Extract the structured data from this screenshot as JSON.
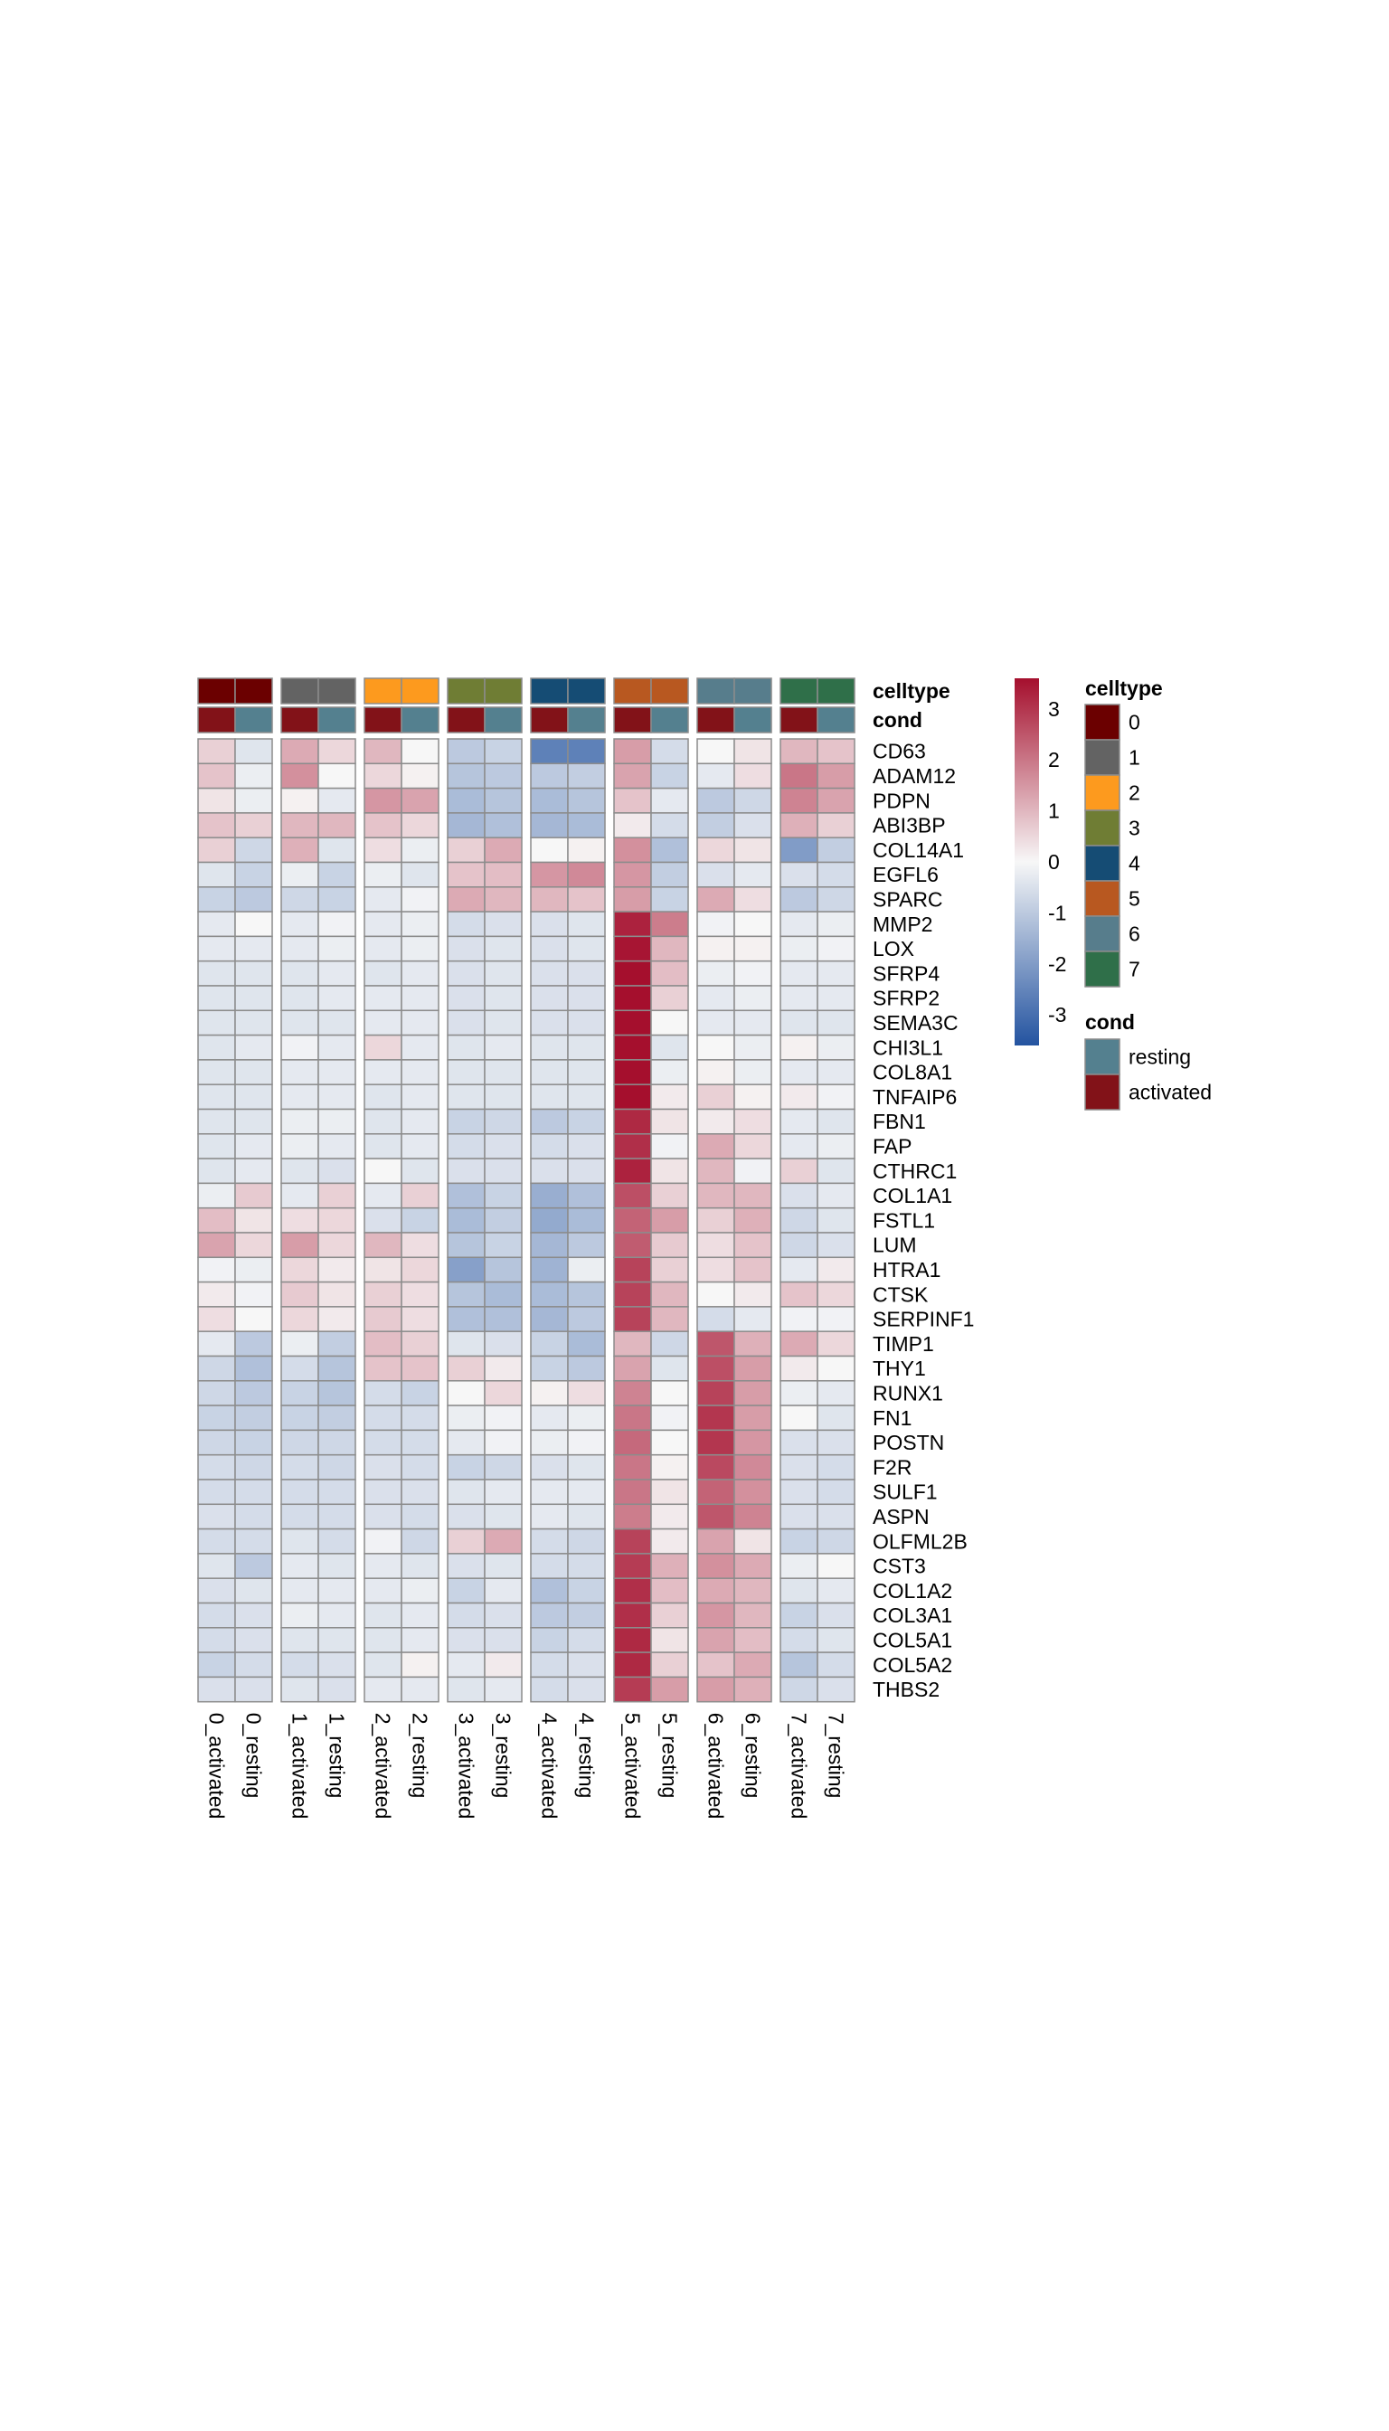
{
  "chart_data": {
    "type": "heatmap",
    "rows": [
      "CD63",
      "ADAM12",
      "PDPN",
      "ABI3BP",
      "COL14A1",
      "EGFL6",
      "SPARC",
      "MMP2",
      "LOX",
      "SFRP4",
      "SFRP2",
      "SEMA3C",
      "CHI3L1",
      "COL8A1",
      "TNFAIP6",
      "FBN1",
      "FAP",
      "CTHRC1",
      "COL1A1",
      "FSTL1",
      "LUM",
      "HTRA1",
      "CTSK",
      "SERPINF1",
      "TIMP1",
      "THY1",
      "RUNX1",
      "FN1",
      "POSTN",
      "F2R",
      "SULF1",
      "ASPN",
      "OLFML2B",
      "CST3",
      "COL1A2",
      "COL3A1",
      "COL5A1",
      "COL5A2",
      "THBS2"
    ],
    "columns": [
      "0_activated",
      "0_resting",
      "1_activated",
      "1_resting",
      "2_activated",
      "2_resting",
      "3_activated",
      "3_resting",
      "4_activated",
      "4_resting",
      "5_activated",
      "5_resting",
      "6_activated",
      "6_resting",
      "7_activated",
      "7_resting"
    ],
    "values": [
      [
        0.6,
        -0.4,
        1.2,
        0.5,
        1.0,
        0.0,
        -1.0,
        -0.8,
        -2.6,
        -2.6,
        1.4,
        -0.6,
        0.0,
        0.3,
        1.0,
        0.8
      ],
      [
        0.8,
        -0.2,
        1.6,
        0.0,
        0.5,
        0.1,
        -1.1,
        -1.0,
        -1.0,
        -0.9,
        1.3,
        -0.8,
        -0.3,
        0.4,
        2.0,
        1.4
      ],
      [
        0.3,
        -0.2,
        0.1,
        -0.3,
        1.5,
        1.3,
        -1.3,
        -1.1,
        -1.3,
        -1.1,
        0.8,
        -0.3,
        -1.0,
        -0.7,
        1.8,
        1.3
      ],
      [
        0.8,
        0.6,
        1.0,
        1.0,
        0.8,
        0.5,
        -1.4,
        -1.2,
        -1.4,
        -1.3,
        0.2,
        -0.6,
        -0.9,
        -0.5,
        1.1,
        0.6
      ],
      [
        0.6,
        -0.7,
        1.1,
        -0.4,
        0.4,
        -0.2,
        0.6,
        1.2,
        0.0,
        0.1,
        1.6,
        -1.2,
        0.5,
        0.3,
        -2.0,
        -0.9
      ],
      [
        -0.4,
        -0.8,
        -0.2,
        -0.8,
        -0.2,
        -0.4,
        0.8,
        0.9,
        1.5,
        1.7,
        1.5,
        -0.9,
        -0.5,
        -0.3,
        -0.5,
        -0.6
      ],
      [
        -0.8,
        -1.0,
        -0.7,
        -0.8,
        -0.3,
        -0.1,
        1.2,
        1.0,
        1.0,
        0.8,
        1.4,
        -0.8,
        1.2,
        0.4,
        -1.0,
        -0.7
      ],
      [
        -0.3,
        0.0,
        -0.3,
        -0.1,
        -0.3,
        -0.2,
        -0.6,
        -0.5,
        -0.5,
        -0.4,
        3.3,
        1.9,
        -0.1,
        0.0,
        -0.3,
        -0.2
      ],
      [
        -0.3,
        -0.3,
        -0.3,
        -0.2,
        -0.3,
        -0.2,
        -0.5,
        -0.4,
        -0.5,
        -0.4,
        3.5,
        1.0,
        0.1,
        0.1,
        -0.2,
        -0.1
      ],
      [
        -0.4,
        -0.4,
        -0.4,
        -0.3,
        -0.4,
        -0.3,
        -0.5,
        -0.4,
        -0.5,
        -0.5,
        3.6,
        0.9,
        -0.2,
        -0.1,
        -0.3,
        -0.3
      ],
      [
        -0.4,
        -0.4,
        -0.4,
        -0.3,
        -0.3,
        -0.3,
        -0.5,
        -0.4,
        -0.5,
        -0.5,
        3.6,
        0.6,
        -0.3,
        -0.2,
        -0.3,
        -0.3
      ],
      [
        -0.4,
        -0.4,
        -0.4,
        -0.4,
        -0.3,
        -0.3,
        -0.5,
        -0.4,
        -0.5,
        -0.5,
        3.6,
        0.0,
        -0.3,
        -0.3,
        -0.4,
        -0.4
      ],
      [
        -0.4,
        -0.3,
        -0.1,
        -0.3,
        0.5,
        -0.3,
        -0.4,
        -0.3,
        -0.4,
        -0.4,
        3.6,
        -0.4,
        0.0,
        -0.2,
        0.1,
        -0.2
      ],
      [
        -0.4,
        -0.4,
        -0.3,
        -0.3,
        -0.3,
        -0.3,
        -0.4,
        -0.4,
        -0.4,
        -0.4,
        3.6,
        -0.2,
        0.1,
        -0.2,
        -0.3,
        -0.3
      ],
      [
        -0.4,
        -0.4,
        -0.3,
        -0.3,
        -0.4,
        -0.3,
        -0.4,
        -0.4,
        -0.4,
        -0.4,
        3.6,
        0.2,
        0.6,
        0.1,
        0.2,
        -0.1
      ],
      [
        -0.4,
        -0.4,
        -0.2,
        -0.2,
        -0.4,
        -0.3,
        -0.8,
        -0.7,
        -1.0,
        -0.8,
        3.2,
        0.3,
        0.2,
        0.4,
        -0.3,
        -0.4
      ],
      [
        -0.4,
        -0.3,
        -0.2,
        -0.3,
        -0.4,
        -0.3,
        -0.6,
        -0.5,
        -0.6,
        -0.5,
        3.1,
        -0.1,
        1.2,
        0.5,
        -0.3,
        -0.2
      ],
      [
        -0.4,
        -0.3,
        -0.4,
        -0.5,
        0.0,
        -0.4,
        -0.5,
        -0.5,
        -0.5,
        -0.5,
        3.3,
        0.3,
        1.0,
        -0.1,
        0.6,
        -0.4
      ],
      [
        -0.2,
        0.7,
        -0.3,
        0.6,
        -0.3,
        0.6,
        -1.2,
        -0.8,
        -1.6,
        -1.2,
        2.6,
        0.6,
        1.0,
        1.0,
        -0.5,
        -0.3
      ],
      [
        0.9,
        0.3,
        0.4,
        0.5,
        -0.5,
        -0.8,
        -1.3,
        -0.9,
        -1.7,
        -1.3,
        2.3,
        1.4,
        0.6,
        1.1,
        -0.7,
        -0.4
      ],
      [
        1.3,
        0.5,
        1.4,
        0.5,
        1.0,
        0.4,
        -1.1,
        -0.8,
        -1.4,
        -1.0,
        2.4,
        0.7,
        0.4,
        0.8,
        -0.7,
        -0.5
      ],
      [
        -0.1,
        -0.2,
        0.5,
        0.2,
        0.3,
        0.5,
        -1.9,
        -1.1,
        -1.5,
        -0.2,
        2.8,
        0.6,
        0.4,
        0.8,
        -0.3,
        0.2
      ],
      [
        0.2,
        -0.1,
        0.7,
        0.3,
        0.6,
        0.4,
        -1.1,
        -1.3,
        -1.3,
        -1.1,
        2.8,
        1.0,
        0.0,
        0.2,
        0.8,
        0.5
      ],
      [
        0.4,
        0.0,
        0.5,
        0.2,
        0.7,
        0.4,
        -1.2,
        -1.2,
        -1.4,
        -1.0,
        2.8,
        1.0,
        -0.6,
        -0.3,
        -0.1,
        -0.1
      ],
      [
        -0.3,
        -1.0,
        -0.2,
        -0.9,
        0.9,
        0.6,
        -0.4,
        -0.5,
        -0.8,
        -1.3,
        1.0,
        -0.7,
        2.5,
        1.1,
        1.2,
        0.5
      ],
      [
        -0.7,
        -1.2,
        -0.6,
        -1.1,
        0.8,
        0.8,
        0.6,
        0.2,
        -0.8,
        -1.0,
        1.3,
        -0.4,
        2.6,
        1.4,
        0.2,
        0.0
      ],
      [
        -0.7,
        -1.0,
        -0.8,
        -1.1,
        -0.6,
        -0.8,
        0.0,
        0.5,
        0.1,
        0.4,
        1.8,
        0.0,
        2.8,
        1.4,
        -0.2,
        -0.3
      ],
      [
        -0.8,
        -0.9,
        -0.8,
        -0.9,
        -0.6,
        -0.6,
        -0.2,
        -0.1,
        -0.3,
        -0.2,
        2.0,
        -0.1,
        3.0,
        1.4,
        0.0,
        -0.4
      ],
      [
        -0.7,
        -0.8,
        -0.7,
        -0.7,
        -0.6,
        -0.6,
        -0.3,
        -0.1,
        -0.2,
        -0.1,
        2.2,
        0.0,
        3.0,
        1.5,
        -0.5,
        -0.5
      ],
      [
        -0.6,
        -0.7,
        -0.6,
        -0.7,
        -0.5,
        -0.6,
        -0.8,
        -0.7,
        -0.5,
        -0.4,
        2.0,
        0.1,
        2.7,
        1.7,
        -0.5,
        -0.6
      ],
      [
        -0.6,
        -0.6,
        -0.6,
        -0.6,
        -0.5,
        -0.5,
        -0.4,
        -0.3,
        -0.3,
        -0.3,
        2.0,
        0.3,
        2.3,
        1.6,
        -0.5,
        -0.6
      ],
      [
        -0.5,
        -0.6,
        -0.6,
        -0.6,
        -0.5,
        -0.6,
        -0.5,
        -0.4,
        -0.3,
        -0.4,
        1.9,
        0.2,
        2.5,
        1.8,
        -0.5,
        -0.5
      ],
      [
        -0.6,
        -0.6,
        -0.4,
        -0.6,
        -0.1,
        -0.7,
        0.6,
        1.2,
        -0.6,
        -0.7,
        2.8,
        0.2,
        1.3,
        0.3,
        -0.8,
        -0.7
      ],
      [
        -0.4,
        -1.0,
        -0.3,
        -0.4,
        -0.3,
        -0.4,
        -0.5,
        -0.4,
        -0.6,
        -0.6,
        2.9,
        1.1,
        1.6,
        1.2,
        -0.2,
        0.0
      ],
      [
        -0.5,
        -0.4,
        -0.3,
        -0.3,
        -0.3,
        -0.2,
        -0.8,
        -0.3,
        -1.2,
        -0.8,
        3.1,
        0.9,
        1.2,
        1.0,
        -0.4,
        -0.3
      ],
      [
        -0.6,
        -0.5,
        -0.2,
        -0.3,
        -0.4,
        -0.3,
        -0.6,
        -0.5,
        -1.0,
        -0.9,
        3.1,
        0.6,
        1.5,
        1.0,
        -0.8,
        -0.5
      ],
      [
        -0.6,
        -0.5,
        -0.4,
        -0.4,
        -0.4,
        -0.3,
        -0.5,
        -0.5,
        -0.8,
        -0.6,
        3.2,
        0.3,
        1.3,
        0.9,
        -0.6,
        -0.4
      ],
      [
        -0.8,
        -0.6,
        -0.6,
        -0.5,
        -0.4,
        0.1,
        -0.3,
        0.2,
        -0.6,
        -0.5,
        3.2,
        0.6,
        0.8,
        1.2,
        -1.1,
        -0.6
      ],
      [
        -0.5,
        -0.5,
        -0.4,
        -0.5,
        -0.3,
        -0.3,
        -0.4,
        -0.3,
        -0.6,
        -0.5,
        2.9,
        1.4,
        1.4,
        1.1,
        -0.7,
        -0.5
      ]
    ],
    "celltype_annotation": [
      "0",
      "0",
      "1",
      "1",
      "2",
      "2",
      "3",
      "3",
      "4",
      "4",
      "5",
      "5",
      "6",
      "6",
      "7",
      "7"
    ],
    "cond_annotation": [
      "activated",
      "resting",
      "activated",
      "resting",
      "activated",
      "resting",
      "activated",
      "resting",
      "activated",
      "resting",
      "activated",
      "resting",
      "activated",
      "resting",
      "activated",
      "resting"
    ],
    "annotation_titles": {
      "celltype": "celltype",
      "cond": "cond"
    },
    "color_scale": {
      "ticks": [
        "3",
        "2",
        "1",
        "0",
        "-1",
        "-2",
        "-3"
      ],
      "tick_values": [
        3,
        2,
        1,
        0,
        -1,
        -2,
        -3
      ],
      "range": [
        -3.6,
        3.6
      ],
      "low": "#2353a0",
      "mid": "#f7f7f7",
      "high": "#a50f2d"
    },
    "legends": {
      "celltype": {
        "title": "celltype",
        "items": [
          {
            "label": "0",
            "color": "#6b0000"
          },
          {
            "label": "1",
            "color": "#636363"
          },
          {
            "label": "2",
            "color": "#fd9a1e"
          },
          {
            "label": "3",
            "color": "#6f7d34"
          },
          {
            "label": "4",
            "color": "#154c74"
          },
          {
            "label": "5",
            "color": "#b85820"
          },
          {
            "label": "6",
            "color": "#577d8c"
          },
          {
            "label": "7",
            "color": "#2f6f49"
          }
        ]
      },
      "cond": {
        "title": "cond",
        "items": [
          {
            "label": "resting",
            "color": "#54808f"
          },
          {
            "label": "activated",
            "color": "#821218"
          }
        ]
      }
    },
    "column_gaps_after": [
      1,
      3,
      5,
      7,
      9,
      11,
      13
    ],
    "legend_placement": "right"
  }
}
